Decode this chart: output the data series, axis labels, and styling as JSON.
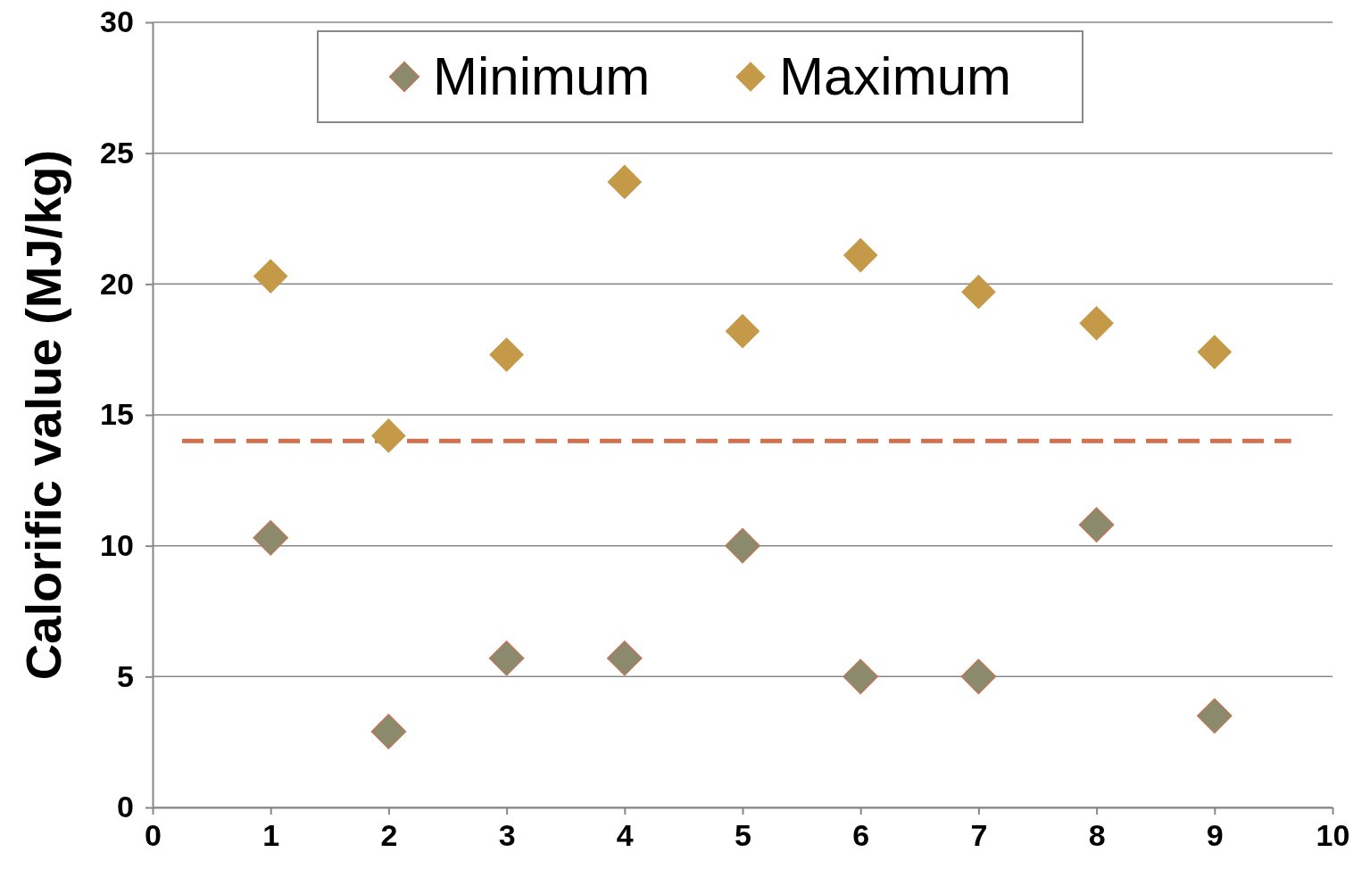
{
  "chart_data": {
    "type": "scatter",
    "ylabel": "Calorific value (MJ/kg)",
    "x": [
      1,
      2,
      3,
      4,
      5,
      6,
      7,
      8,
      9
    ],
    "series": [
      {
        "name": "Minimum",
        "color": "#8c8a6c",
        "values": [
          10.3,
          2.9,
          5.7,
          5.7,
          10.0,
          5.0,
          5.0,
          10.8,
          3.5
        ]
      },
      {
        "name": "Maximum",
        "color": "#c49a48",
        "values": [
          20.3,
          14.2,
          17.3,
          23.9,
          18.2,
          21.1,
          19.7,
          18.5,
          17.4
        ]
      }
    ],
    "xlim": [
      0,
      10
    ],
    "xticks": [
      0,
      1,
      2,
      3,
      4,
      5,
      6,
      7,
      8,
      9,
      10
    ],
    "ylim": [
      0,
      30
    ],
    "yticks": [
      0,
      5,
      10,
      15,
      20,
      25,
      30
    ],
    "grid": "y",
    "legend": "top",
    "marker": "diamond",
    "ref_lines": [
      {
        "axis": "y",
        "value": 14,
        "color": "#d0704f",
        "line_style": "dashed"
      }
    ]
  }
}
